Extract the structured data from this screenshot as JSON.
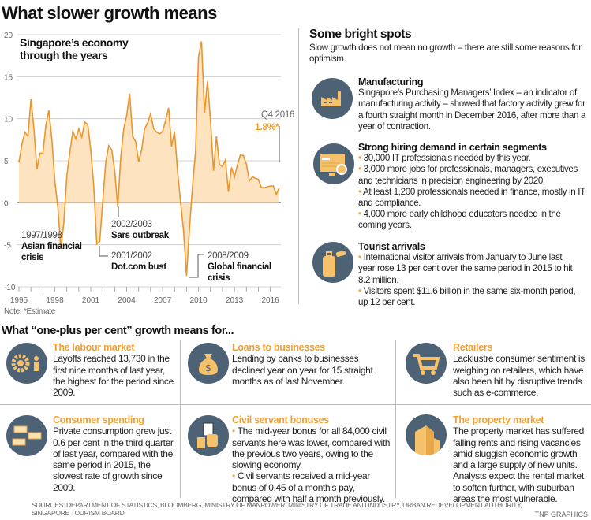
{
  "title": "What slower growth means",
  "chart_data": {
    "type": "area",
    "title": "Singapore’s economy through the years",
    "title_lines": [
      "Singapore’s economy",
      "through the years"
    ],
    "frequency": "quarterly",
    "x_range": [
      1995,
      2016.75
    ],
    "ylim": [
      -10,
      20
    ],
    "yticks": [
      "20",
      "15",
      "10",
      "5",
      "0",
      "-5",
      "-10"
    ],
    "xticks": [
      "1995",
      "1998",
      "2001",
      "2004",
      "2007",
      "2010",
      "2013",
      "2016"
    ],
    "grid": true,
    "line_color": "#e8962e",
    "fill_color": "#fde3bf",
    "values": [
      4.8,
      7,
      8.4,
      7.9,
      12.3,
      8.8,
      4,
      5.9,
      5.9,
      9.2,
      11,
      7.6,
      2.6,
      -0.5,
      -5.5,
      -2.4,
      3.2,
      6,
      8.5,
      7.6,
      8.8,
      7.8,
      9.6,
      9.3,
      6.3,
      2,
      -4.9,
      -4.6,
      0.1,
      4.8,
      6.8,
      6.3,
      3.8,
      -0.5,
      5.4,
      8.8,
      10.4,
      13,
      7.9,
      7.3,
      4.9,
      6.3,
      8.8,
      9.5,
      10.6,
      8.8,
      8.4,
      8.2,
      8.5,
      9.8,
      11.3,
      6.7,
      8.5,
      3.8,
      0.1,
      -3.3,
      -8.7,
      -3,
      2,
      6,
      17.4,
      19.2,
      10.7,
      14.5,
      9.8,
      3.8,
      7.9,
      4.6,
      4.3,
      5.1,
      1.3,
      4.2,
      3.1,
      4.5,
      5.7,
      5.6,
      4.6,
      2.6,
      3.1,
      2.9,
      2.8,
      1.8,
      1.8,
      1.9,
      2,
      2,
      1.0,
      1.8
    ],
    "annotations": {
      "latest_label": "Q4 2016",
      "latest_value": "1.8%*",
      "asian_years": "1997/1998",
      "asian_l1": "Asian financial",
      "asian_l2": "crisis",
      "sars_years": "2002/2003",
      "sars_label": "Sars outbreak",
      "dotcom_years": "2001/2002",
      "dotcom_label": "Dot.com bust",
      "gfc_years": "2008/2009",
      "gfc_l1": "Global financial",
      "gfc_l2": "crisis"
    },
    "note": "Note: *Estimate"
  },
  "bright": {
    "title": "Some bright spots",
    "intro": "Slow growth does not mean no growth – there are still some reasons for optimism.",
    "items": [
      {
        "icon": "factory-icon",
        "heading": "Manufacturing",
        "body": "Singapore’s Purchasing Managers’ Index – an indicator of manufacturing activity – showed that factory activity grew for a fourth straight month in December 2016, after more than a year of contraction."
      },
      {
        "icon": "computer-search-icon",
        "heading": "Strong hiring demand in certain segments",
        "bullets": [
          "30,000 IT professionals needed by this year.",
          "3,000 more jobs for professionals, managers, executives and technicians in precision engineering by 2020.",
          "At least 1,200 professionals needed in finance, mostly in IT and compliance.",
          "4,000 more early childhood educators needed in the coming years."
        ]
      },
      {
        "icon": "luggage-icon",
        "heading": "Tourist arrivals",
        "bullets": [
          "International visitor arrivals from January to June last year rose 13 per cent over the same period in 2015 to hit 8.2 million.",
          "Visitors spent $11.6 billion in the same six-month period, up 12 per cent."
        ]
      }
    ]
  },
  "impact": {
    "title": "What “one-plus per cent” growth means for...",
    "cells": [
      {
        "icon": "gears-people-icon",
        "heading": "The labour market",
        "body": "Layoffs reached 13,730 in the first nine months of last year, the highest for the period since 2009."
      },
      {
        "icon": "money-bag-icon",
        "heading": "Loans to businesses",
        "body": "Lending by banks to businesses declined year on year for 15 straight months as of last November."
      },
      {
        "icon": "shopping-cart-icon",
        "heading": "Retailers",
        "body": "Lacklustre consumer sentiment is weighing on retailers, which have also been hit by disruptive trends such as e-commerce."
      },
      {
        "icon": "cash-stacks-icon",
        "heading": "Consumer spending",
        "body": "Private consumption grew just 0.6 per cent in the third quarter of last year, compared with the same period in 2015, the slowest rate of growth since 2009."
      },
      {
        "icon": "hand-money-icon",
        "heading": "Civil servant bonuses",
        "bullets": [
          "The mid-year bonus for all 84,000 civil servants here was lower, compared with the previous two years, owing to the slowing economy.",
          "Civil servants received a mid-year bonus of 0.45 of a month’s pay, compared with half a month previously."
        ]
      },
      {
        "icon": "building-icon",
        "heading": "The property market",
        "body": "The property market has suffered falling rents and rising vacancies amid sluggish economic growth and a large supply of new units. Analysts expect the rental market to soften further, with suburban areas the most vulnerable."
      }
    ]
  },
  "sources": "SOURCES:  DEPARTMENT OF STATISTICS, BLOOMBERG, MINISTRY OF MANPOWER,  MINISTRY OF TRADE AND INDUSTRY, URBAN REDEVELOPMENT AUTHORITY, SINGAPORE TOURISM BOARD",
  "credit": "TNP GRAPHICS"
}
